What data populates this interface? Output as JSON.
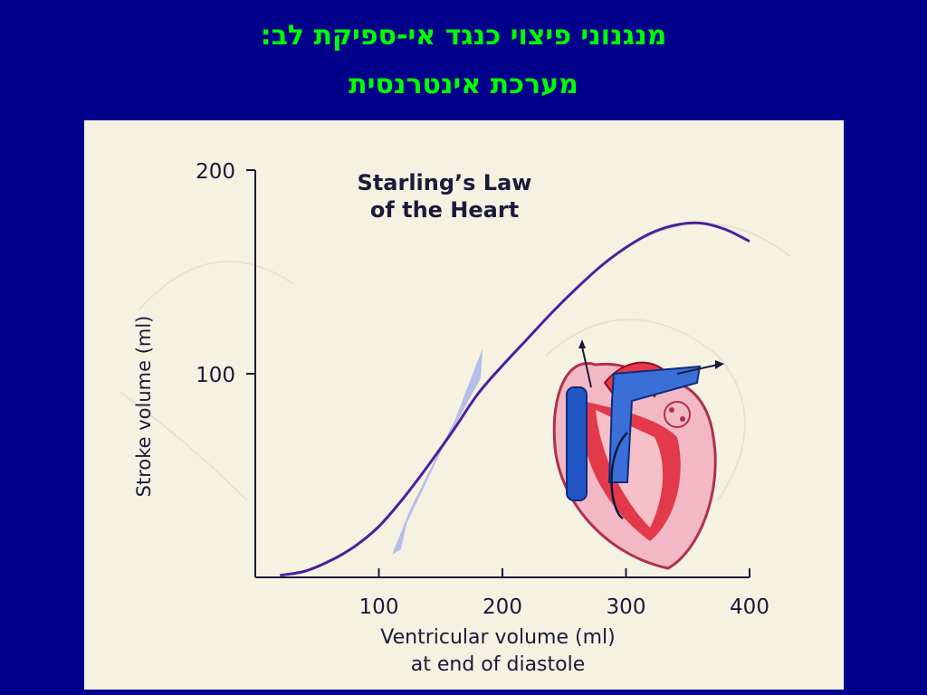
{
  "slide": {
    "title_line_1": "מנגנוני פיצוי כנגד אי-ספיקת לב:",
    "title_line_2": "מערכת אינטרנסית",
    "background_color": "#00008b",
    "title_color": "#00ff00"
  },
  "chart_data": {
    "type": "line",
    "title_lines": [
      "Starling’s Law",
      "of the Heart"
    ],
    "xlabel_lines": [
      "Ventricular volume (ml)",
      "at end of diastole"
    ],
    "ylabel": "Stroke volume (ml)",
    "xlim": [
      0,
      400
    ],
    "ylim": [
      0,
      200
    ],
    "x_ticks": [
      100,
      200,
      300,
      400
    ],
    "y_ticks": [
      100,
      200
    ],
    "grid": false,
    "series": [
      {
        "color": "#4b1f9e",
        "x": [
          20,
          40,
          60,
          80,
          100,
          120,
          140,
          160,
          180,
          200,
          220,
          240,
          260,
          280,
          300,
          320,
          340,
          360,
          380,
          400
        ],
        "y": [
          1,
          3,
          8,
          15,
          25,
          39,
          55,
          72,
          90,
          104,
          117,
          130,
          142,
          153,
          162,
          169,
          173,
          174,
          171,
          165
        ]
      }
    ],
    "highlight_band_color": "#9aa8f0",
    "illustration": "heart-icon"
  }
}
